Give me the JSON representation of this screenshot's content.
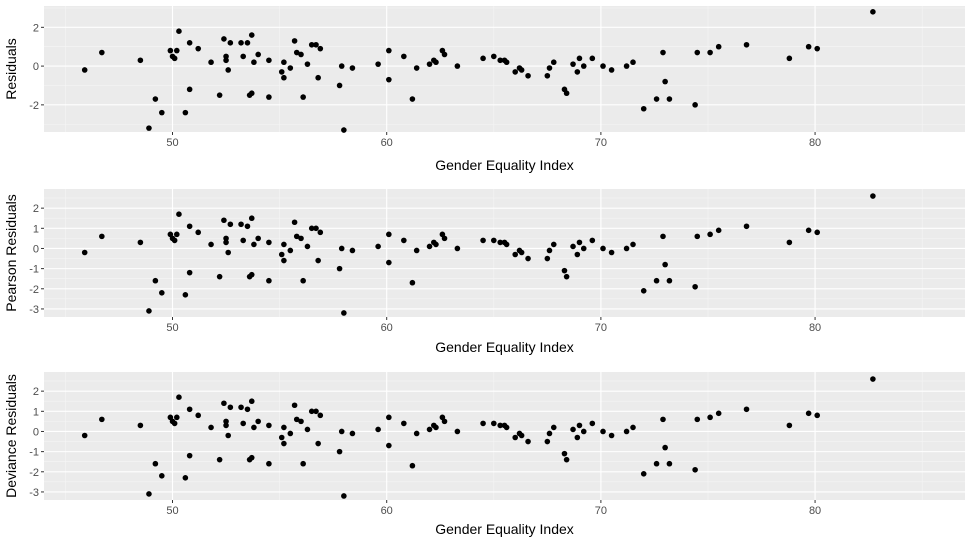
{
  "chart_data": [
    {
      "type": "scatter",
      "xlabel": "Gender Equality Index",
      "ylabel": "Residuals",
      "xlim": [
        44,
        87
      ],
      "ylim": [
        -3.4,
        3.1
      ],
      "xticks": [
        50,
        60,
        70,
        80
      ],
      "yticks": [
        -2,
        0,
        2
      ],
      "grid": true,
      "x": [
        45.9,
        46.7,
        48.5,
        48.9,
        49.2,
        49.5,
        49.9,
        50.0,
        50.1,
        50.2,
        50.3,
        50.6,
        50.8,
        50.8,
        51.2,
        51.8,
        52.2,
        52.4,
        52.5,
        52.5,
        52.6,
        52.7,
        53.2,
        53.3,
        53.5,
        53.6,
        53.7,
        53.7,
        53.8,
        54.0,
        54.5,
        54.5,
        55.1,
        55.2,
        55.2,
        55.5,
        55.7,
        55.8,
        56.0,
        56.1,
        56.3,
        56.5,
        56.7,
        56.8,
        56.9,
        57.8,
        57.9,
        58.0,
        58.4,
        59.6,
        60.1,
        60.1,
        60.8,
        61.2,
        61.4,
        62.0,
        62.2,
        62.3,
        62.6,
        62.7,
        63.3,
        64.5,
        65.0,
        65.3,
        65.5,
        65.6,
        66.0,
        66.2,
        66.3,
        66.6,
        67.5,
        67.6,
        67.8,
        68.3,
        68.4,
        68.7,
        68.9,
        69.0,
        69.2,
        69.6,
        70.1,
        70.5,
        71.2,
        71.5,
        72.0,
        72.6,
        72.9,
        73.0,
        73.2,
        74.4,
        74.5,
        75.1,
        75.5,
        76.8,
        78.8,
        79.7,
        80.1,
        82.7
      ],
      "values": [
        -0.2,
        0.7,
        0.3,
        -3.2,
        -1.7,
        -2.4,
        0.8,
        0.5,
        0.4,
        0.8,
        1.8,
        -2.4,
        -1.2,
        1.2,
        0.9,
        0.2,
        -1.5,
        1.4,
        0.5,
        0.3,
        -0.2,
        1.2,
        1.2,
        0.5,
        1.2,
        -1.5,
        -1.4,
        1.6,
        0.2,
        0.6,
        -1.6,
        0.3,
        -0.3,
        -0.6,
        0.2,
        -0.1,
        1.3,
        0.7,
        0.6,
        -1.6,
        0.1,
        1.1,
        1.1,
        -0.6,
        0.9,
        -1.0,
        0.0,
        -3.3,
        -0.1,
        0.1,
        -0.7,
        0.8,
        0.5,
        -1.7,
        -0.1,
        0.1,
        0.3,
        0.2,
        0.8,
        0.6,
        0.0,
        0.4,
        0.5,
        0.3,
        0.3,
        0.2,
        -0.3,
        -0.1,
        -0.2,
        -0.5,
        -0.5,
        -0.1,
        0.2,
        -1.2,
        -1.4,
        0.1,
        -0.3,
        0.4,
        0.0,
        0.4,
        0.0,
        -0.2,
        0.0,
        0.2,
        -2.2,
        -1.7,
        0.7,
        -0.8,
        -1.7,
        -2.0,
        0.7,
        0.7,
        1.0,
        1.1,
        0.4,
        1.0,
        0.9,
        2.8
      ]
    },
    {
      "type": "scatter",
      "xlabel": "Gender Equality Index",
      "ylabel": "Pearson Residuals",
      "xlim": [
        44,
        87
      ],
      "ylim": [
        -3.4,
        2.95
      ],
      "xticks": [
        50,
        60,
        70,
        80
      ],
      "yticks": [
        -3,
        -2,
        -1,
        0,
        1,
        2
      ],
      "grid": true,
      "x": [
        45.9,
        46.7,
        48.5,
        48.9,
        49.2,
        49.5,
        49.9,
        50.0,
        50.1,
        50.2,
        50.3,
        50.6,
        50.8,
        50.8,
        51.2,
        51.8,
        52.2,
        52.4,
        52.5,
        52.5,
        52.6,
        52.7,
        53.2,
        53.3,
        53.5,
        53.6,
        53.7,
        53.7,
        53.8,
        54.0,
        54.5,
        54.5,
        55.1,
        55.2,
        55.2,
        55.5,
        55.7,
        55.8,
        56.0,
        56.1,
        56.3,
        56.5,
        56.7,
        56.8,
        56.9,
        57.8,
        57.9,
        58.0,
        58.4,
        59.6,
        60.1,
        60.1,
        60.8,
        61.2,
        61.4,
        62.0,
        62.2,
        62.3,
        62.6,
        62.7,
        63.3,
        64.5,
        65.0,
        65.3,
        65.5,
        65.6,
        66.0,
        66.2,
        66.3,
        66.6,
        67.5,
        67.6,
        67.8,
        68.3,
        68.4,
        68.7,
        68.9,
        69.0,
        69.2,
        69.6,
        70.1,
        70.5,
        71.2,
        71.5,
        72.0,
        72.6,
        72.9,
        73.0,
        73.2,
        74.4,
        74.5,
        75.1,
        75.5,
        76.8,
        78.8,
        79.7,
        80.1,
        82.7
      ],
      "values": [
        -0.2,
        0.6,
        0.3,
        -3.1,
        -1.6,
        -2.2,
        0.7,
        0.5,
        0.4,
        0.7,
        1.7,
        -2.3,
        -1.2,
        1.1,
        0.8,
        0.2,
        -1.4,
        1.4,
        0.5,
        0.3,
        -0.2,
        1.2,
        1.2,
        0.4,
        1.1,
        -1.4,
        -1.3,
        1.5,
        0.2,
        0.5,
        -1.6,
        0.3,
        -0.3,
        -0.6,
        0.2,
        -0.1,
        1.3,
        0.6,
        0.5,
        -1.6,
        0.1,
        1.0,
        1.0,
        -0.6,
        0.8,
        -1.0,
        0.0,
        -3.2,
        -0.1,
        0.1,
        -0.7,
        0.7,
        0.4,
        -1.7,
        -0.1,
        0.1,
        0.3,
        0.2,
        0.7,
        0.5,
        0.0,
        0.4,
        0.4,
        0.3,
        0.3,
        0.2,
        -0.3,
        -0.1,
        -0.2,
        -0.5,
        -0.5,
        -0.1,
        0.2,
        -1.1,
        -1.4,
        0.1,
        -0.3,
        0.3,
        0.0,
        0.4,
        0.0,
        -0.2,
        0.0,
        0.2,
        -2.1,
        -1.6,
        0.6,
        -0.8,
        -1.6,
        -1.9,
        0.6,
        0.7,
        0.9,
        1.1,
        0.3,
        0.9,
        0.8,
        2.6
      ]
    },
    {
      "type": "scatter",
      "xlabel": "Gender Equality Index",
      "ylabel": "Deviance Residuals",
      "xlim": [
        44,
        87
      ],
      "ylim": [
        -3.4,
        2.95
      ],
      "xticks": [
        50,
        60,
        70,
        80
      ],
      "yticks": [
        -3,
        -2,
        -1,
        0,
        1,
        2
      ],
      "grid": true,
      "x": [
        45.9,
        46.7,
        48.5,
        48.9,
        49.2,
        49.5,
        49.9,
        50.0,
        50.1,
        50.2,
        50.3,
        50.6,
        50.8,
        50.8,
        51.2,
        51.8,
        52.2,
        52.4,
        52.5,
        52.5,
        52.6,
        52.7,
        53.2,
        53.3,
        53.5,
        53.6,
        53.7,
        53.7,
        53.8,
        54.0,
        54.5,
        54.5,
        55.1,
        55.2,
        55.2,
        55.5,
        55.7,
        55.8,
        56.0,
        56.1,
        56.3,
        56.5,
        56.7,
        56.8,
        56.9,
        57.8,
        57.9,
        58.0,
        58.4,
        59.6,
        60.1,
        60.1,
        60.8,
        61.2,
        61.4,
        62.0,
        62.2,
        62.3,
        62.6,
        62.7,
        63.3,
        64.5,
        65.0,
        65.3,
        65.5,
        65.6,
        66.0,
        66.2,
        66.3,
        66.6,
        67.5,
        67.6,
        67.8,
        68.3,
        68.4,
        68.7,
        68.9,
        69.0,
        69.2,
        69.6,
        70.1,
        70.5,
        71.2,
        71.5,
        72.0,
        72.6,
        72.9,
        73.0,
        73.2,
        74.4,
        74.5,
        75.1,
        75.5,
        76.8,
        78.8,
        79.7,
        80.1,
        82.7
      ],
      "values": [
        -0.2,
        0.6,
        0.3,
        -3.1,
        -1.6,
        -2.2,
        0.7,
        0.5,
        0.4,
        0.7,
        1.7,
        -2.3,
        -1.2,
        1.1,
        0.8,
        0.2,
        -1.4,
        1.4,
        0.5,
        0.3,
        -0.2,
        1.2,
        1.2,
        0.4,
        1.1,
        -1.4,
        -1.3,
        1.5,
        0.2,
        0.5,
        -1.6,
        0.3,
        -0.3,
        -0.6,
        0.2,
        -0.1,
        1.3,
        0.6,
        0.5,
        -1.6,
        0.1,
        1.0,
        1.0,
        -0.6,
        0.8,
        -1.0,
        0.0,
        -3.2,
        -0.1,
        0.1,
        -0.7,
        0.7,
        0.4,
        -1.7,
        -0.1,
        0.1,
        0.3,
        0.2,
        0.7,
        0.5,
        0.0,
        0.4,
        0.4,
        0.3,
        0.3,
        0.2,
        -0.3,
        -0.1,
        -0.2,
        -0.5,
        -0.5,
        -0.1,
        0.2,
        -1.1,
        -1.4,
        0.1,
        -0.3,
        0.3,
        0.0,
        0.4,
        0.0,
        -0.2,
        0.0,
        0.2,
        -2.1,
        -1.6,
        0.6,
        -0.8,
        -1.6,
        -1.9,
        0.6,
        0.7,
        0.9,
        1.1,
        0.3,
        0.9,
        0.8,
        2.6
      ]
    }
  ],
  "colors": {
    "panel_background": "#ebebeb",
    "grid_major": "#ffffff",
    "grid_minor": "#f5f5f5",
    "point": "#000000",
    "tick_text": "#4d4d4d",
    "title_text": "#000000"
  }
}
